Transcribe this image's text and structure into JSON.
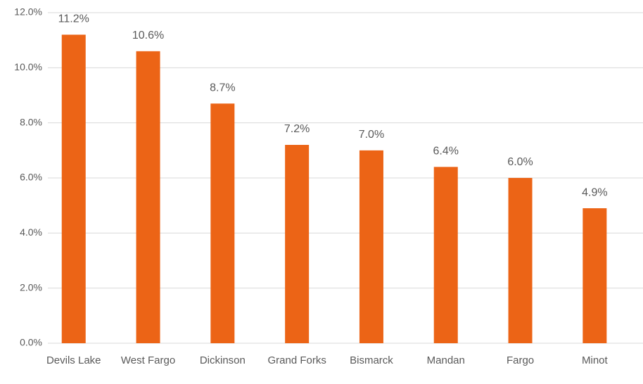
{
  "chart_data": {
    "type": "bar",
    "categories": [
      "Devils Lake",
      "West Fargo",
      "Dickinson",
      "Grand Forks",
      "Bismarck",
      "Mandan",
      "Fargo",
      "Minot"
    ],
    "values": [
      11.2,
      10.6,
      8.7,
      7.2,
      7.0,
      6.4,
      6.0,
      4.9
    ],
    "value_labels": [
      "11.2%",
      "10.6%",
      "8.7%",
      "7.2%",
      "7.0%",
      "6.4%",
      "6.0%",
      "4.9%"
    ],
    "color": "#ec6416",
    "ylim": [
      0,
      12
    ],
    "yticks": [
      {
        "value": 0,
        "label": "0.0%"
      },
      {
        "value": 2,
        "label": "2.0%"
      },
      {
        "value": 4,
        "label": "4.0%"
      },
      {
        "value": 6,
        "label": "6.0%"
      },
      {
        "value": 8,
        "label": "8.0%"
      },
      {
        "value": 10,
        "label": "10.0%"
      },
      {
        "value": 12,
        "label": "12.0%"
      }
    ],
    "grid": true
  }
}
